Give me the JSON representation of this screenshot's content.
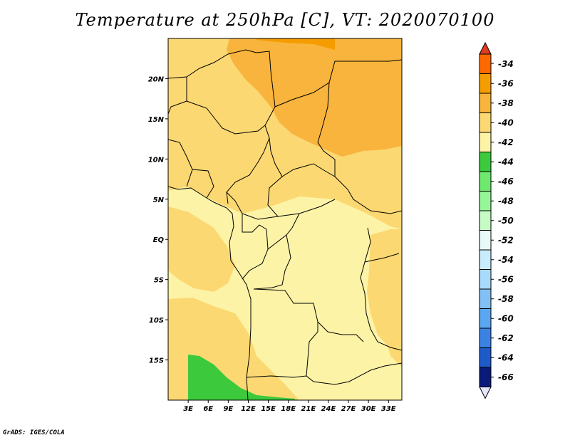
{
  "title": "Temperature at 250hPa [C], VT: 2020070100",
  "footer": "GrADS: IGES/COLA",
  "map": {
    "lon_range": [
      0,
      35
    ],
    "lat_range": [
      -20,
      25
    ],
    "x_ticks": [
      {
        "v": 3,
        "label": "3E"
      },
      {
        "v": 6,
        "label": "6E"
      },
      {
        "v": 9,
        "label": "9E"
      },
      {
        "v": 12,
        "label": "12E"
      },
      {
        "v": 15,
        "label": "15E"
      },
      {
        "v": 18,
        "label": "18E"
      },
      {
        "v": 21,
        "label": "21E"
      },
      {
        "v": 24,
        "label": "24E"
      },
      {
        "v": 27,
        "label": "27E"
      },
      {
        "v": 30,
        "label": "30E"
      },
      {
        "v": 33,
        "label": "33E"
      }
    ],
    "y_ticks": [
      {
        "v": 20,
        "label": "20N"
      },
      {
        "v": 15,
        "label": "15N"
      },
      {
        "v": 10,
        "label": "10N"
      },
      {
        "v": 5,
        "label": "5N"
      },
      {
        "v": 0,
        "label": "EQ"
      },
      {
        "v": -5,
        "label": "5S"
      },
      {
        "v": -10,
        "label": "10S"
      },
      {
        "v": -15,
        "label": "15S"
      }
    ]
  },
  "colorbar": {
    "levels": [
      {
        "label": "-34",
        "color": "#ff6a00"
      },
      {
        "label": "-36",
        "color": "#f59d00"
      },
      {
        "label": "-38",
        "color": "#f8b43c"
      },
      {
        "label": "-40",
        "color": "#fbd872"
      },
      {
        "label": "-42",
        "color": "#fcf3a6"
      },
      {
        "label": "-44",
        "color": "#3cc93c"
      },
      {
        "label": "-46",
        "color": "#6ee86e"
      },
      {
        "label": "-48",
        "color": "#96f596"
      },
      {
        "label": "-50",
        "color": "#c6fbc6"
      },
      {
        "label": "-52",
        "color": "#e8faf8"
      },
      {
        "label": "-54",
        "color": "#c8ecfb"
      },
      {
        "label": "-56",
        "color": "#a8dafc"
      },
      {
        "label": "-58",
        "color": "#82c0f4"
      },
      {
        "label": "-60",
        "color": "#5aa6f0"
      },
      {
        "label": "-62",
        "color": "#3c82e4"
      },
      {
        "label": "-64",
        "color": "#1e5ac8"
      },
      {
        "label": "-66",
        "color": "#0a1a78"
      }
    ],
    "top_arrow_color": "#e13c1e",
    "bottom_arrow_color": "#e3e6fb"
  }
}
